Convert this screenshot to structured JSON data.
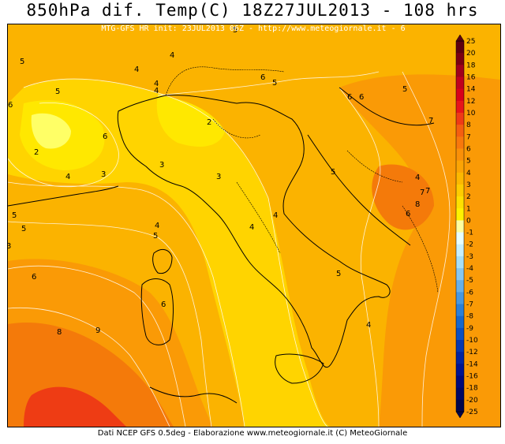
{
  "title": "850hPa dif. Temp(C) 18Z27JUL2013 - 108 hrs",
  "subtitle": "MTG-GFS HR init: 23JUL2013 06Z - http://www.meteogiornale.it - 6",
  "footer": "Dati NCEP GFS 0.5deg - Elaborazione www.meteogiornale.it (C) MeteoGiornale",
  "colorbar": {
    "labels": [
      "25",
      "20",
      "18",
      "16",
      "14",
      "12",
      "10",
      "8",
      "7",
      "6",
      "5",
      "4",
      "3",
      "2",
      "1",
      "0",
      "-1",
      "-2",
      "-3",
      "-4",
      "-5",
      "-6",
      "-7",
      "-8",
      "-9",
      "-10",
      "-12",
      "-14",
      "-16",
      "-18",
      "-20",
      "-25"
    ],
    "colors": [
      "#5c0010",
      "#7a0012",
      "#a0001c",
      "#c0001e",
      "#d8001a",
      "#e8141a",
      "#f03a16",
      "#f55e10",
      "#f8780c",
      "#fa9008",
      "#fca404",
      "#fdb800",
      "#ffcc00",
      "#ffe000",
      "#fff200",
      "#ffffa0",
      "#e8ffff",
      "#c8f0ff",
      "#a8e0f8",
      "#88c8f0",
      "#68b0e8",
      "#4898e0",
      "#2c80d8",
      "#1868cc",
      "#0c50c0",
      "#0838b0",
      "#0424a0",
      "#021490",
      "#020a7a",
      "#020864",
      "#02064c"
    ]
  },
  "contour_labels": [
    "5",
    "4",
    "4",
    "5",
    "4",
    "5",
    "6",
    "4",
    "6",
    "6",
    "5",
    "6",
    "5",
    "7",
    "2",
    "3",
    "6",
    "2",
    "4",
    "3",
    "3",
    "4",
    "6",
    "7",
    "8",
    "6",
    "5",
    "5",
    "4",
    "4",
    "4",
    "5",
    "3",
    "5",
    "6",
    "8",
    "9",
    "5",
    "4",
    "7"
  ],
  "colors": {
    "base": "#fbb300",
    "yellow": "#ffd400",
    "lightyellow": "#ffe800",
    "pale": "#ffff66",
    "orange": "#fa9a06",
    "deeporange": "#f47a0a",
    "red": "#ee3c14",
    "border": "#000000",
    "isoline": "#ffffff"
  }
}
